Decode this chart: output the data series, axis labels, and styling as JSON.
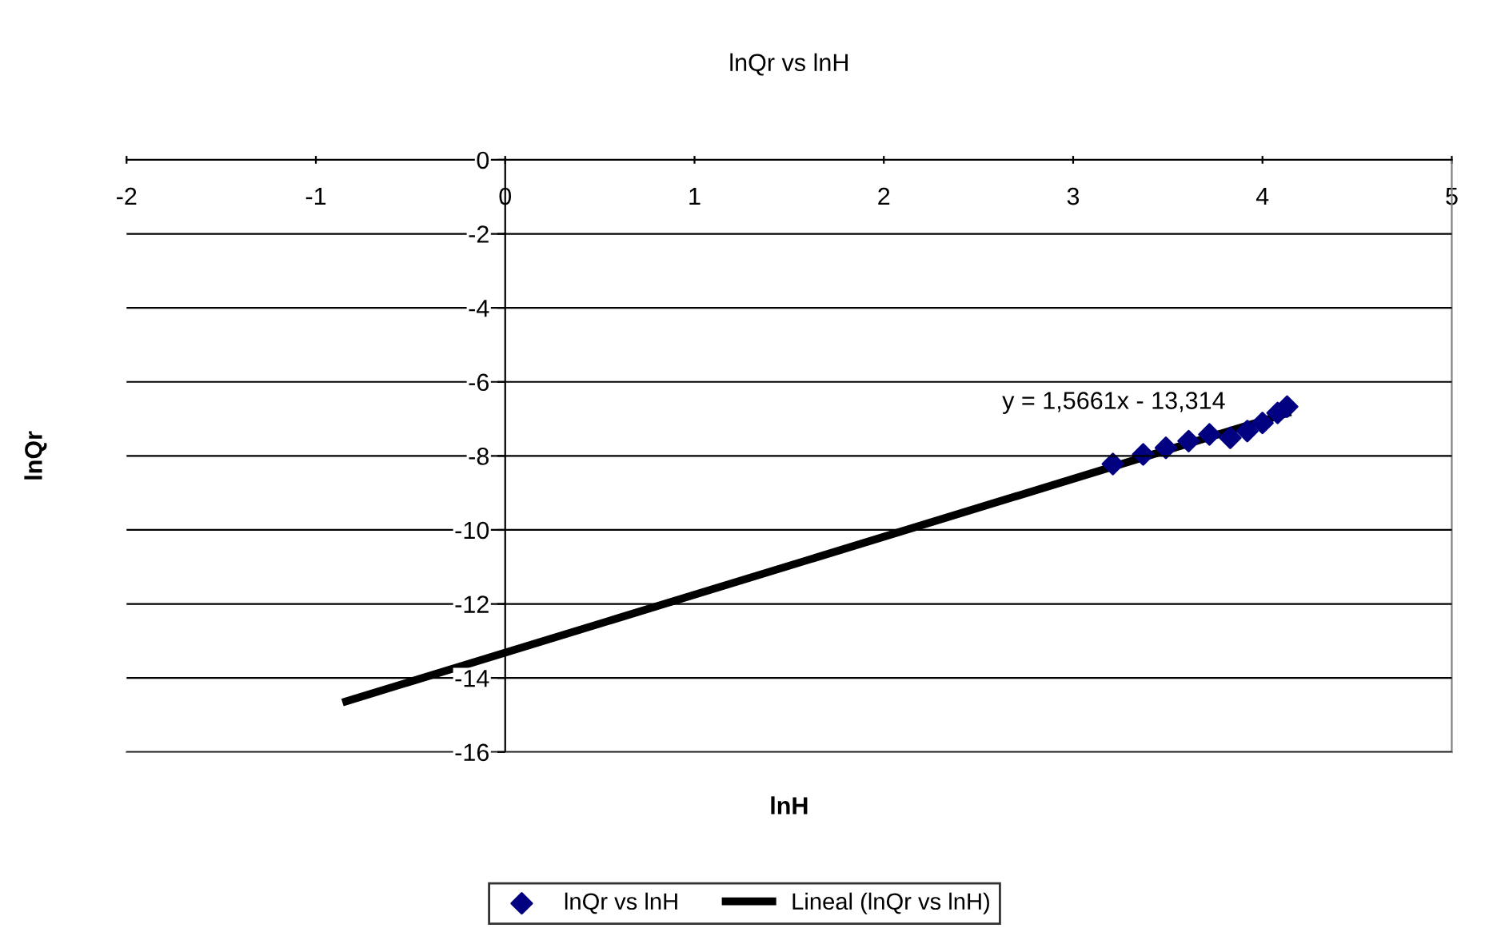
{
  "chart_data": {
    "type": "scatter",
    "title": "lnQr vs lnH",
    "xlabel": "lnH",
    "ylabel": "lnQr",
    "xlim": [
      -2,
      5
    ],
    "xticks": [
      -2,
      -1,
      0,
      1,
      2,
      3,
      4,
      5
    ],
    "ylim": [
      -16,
      0
    ],
    "yticks": [
      -16,
      -14,
      -12,
      -10,
      -8,
      -6,
      -4,
      -2,
      0
    ],
    "grid": "y",
    "legend": "bottom",
    "line_style": "solid",
    "annotations": [
      "y = 1,5661x - 13,314"
    ],
    "series": [
      {
        "name": "lnQr vs lnH",
        "marker": "diamond",
        "color": "#000080",
        "x": [
          3.21,
          3.37,
          3.49,
          3.61,
          3.72,
          3.83,
          3.92,
          4.0,
          4.08,
          4.13
        ],
        "values": [
          -8.22,
          -7.96,
          -7.78,
          -7.6,
          -7.42,
          -7.51,
          -7.33,
          -7.11,
          -6.84,
          -6.67
        ]
      },
      {
        "name": "Lineal (lnQr vs lnH)",
        "type": "line",
        "color": "#000000",
        "x": [
          -0.84,
          4.13
        ],
        "values": [
          -14.63,
          -6.85
        ]
      }
    ]
  }
}
